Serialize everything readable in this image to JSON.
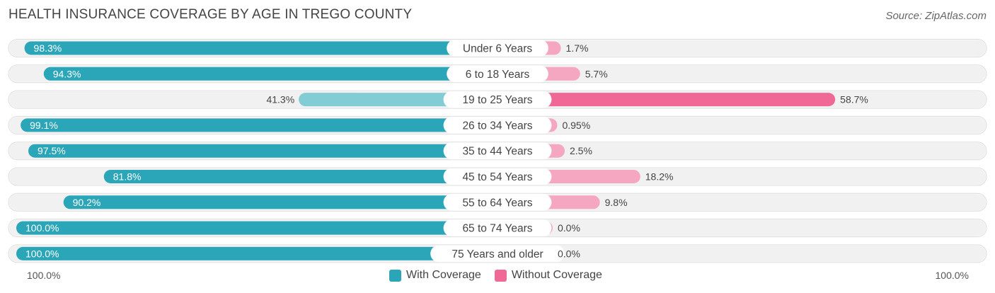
{
  "title": "HEALTH INSURANCE COVERAGE BY AGE IN TREGO COUNTY",
  "source": "Source: ZipAtlas.com",
  "colors": {
    "with_strong": "#2aa6b8",
    "with_light": "#82ccd6",
    "without_strong": "#f06895",
    "without_light": "#f5a6c0",
    "row_bg": "#f1f1f1"
  },
  "legend": {
    "with_label": "With Coverage",
    "without_label": "Without Coverage"
  },
  "axis": {
    "left_label": "100.0%",
    "right_label": "100.0%"
  },
  "chart_data": {
    "type": "bar",
    "orientation": "horizontal-diverging",
    "title": "HEALTH INSURANCE COVERAGE BY AGE IN TREGO COUNTY",
    "categories": [
      "Under 6 Years",
      "6 to 18 Years",
      "19 to 25 Years",
      "26 to 34 Years",
      "35 to 44 Years",
      "45 to 54 Years",
      "55 to 64 Years",
      "65 to 74 Years",
      "75 Years and older"
    ],
    "series": [
      {
        "name": "With Coverage",
        "values": [
          98.3,
          94.3,
          41.3,
          99.1,
          97.5,
          81.8,
          90.2,
          100.0,
          100.0
        ],
        "labels": [
          "98.3%",
          "94.3%",
          "41.3%",
          "99.1%",
          "97.5%",
          "81.8%",
          "90.2%",
          "100.0%",
          "100.0%"
        ]
      },
      {
        "name": "Without Coverage",
        "values": [
          1.7,
          5.7,
          58.7,
          0.95,
          2.5,
          18.2,
          9.8,
          0.0,
          0.0
        ],
        "labels": [
          "1.7%",
          "5.7%",
          "58.7%",
          "0.95%",
          "2.5%",
          "18.2%",
          "9.8%",
          "0.0%",
          "0.0%"
        ]
      }
    ],
    "xlim": [
      -100,
      100
    ],
    "xlabel_left": "100.0%",
    "xlabel_right": "100.0%"
  }
}
